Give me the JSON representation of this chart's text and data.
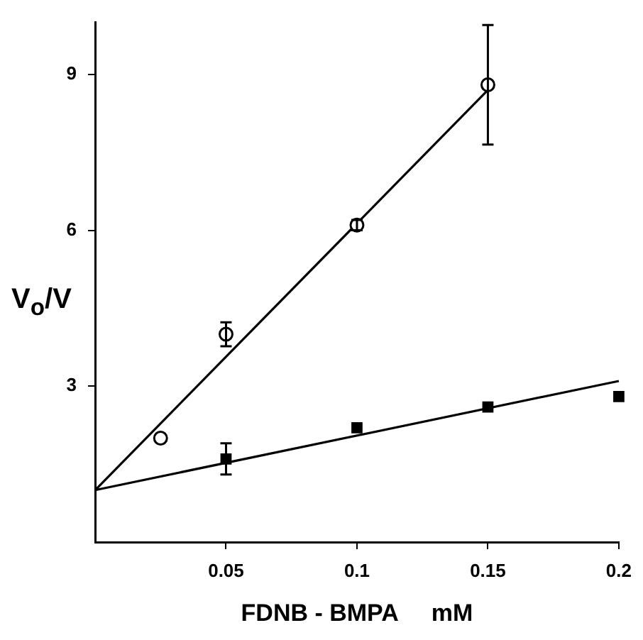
{
  "chart_data": {
    "type": "scatter",
    "xlabel": "FDNB - BMPA     mM",
    "ylabel": "V$_{o}$/V",
    "xlim": [
      0,
      0.2
    ],
    "xticks": [
      0.05,
      0.1,
      0.15,
      0.2
    ],
    "ylim": [
      0,
      10
    ],
    "yticks": [
      3,
      6,
      9
    ],
    "grid": false,
    "legend": false,
    "series": [
      {
        "marker": "circle",
        "color": "#000000",
        "x": [
          0.025,
          0.05,
          0.1,
          0.15
        ],
        "values": [
          2.0,
          4.0,
          6.1,
          8.8
        ],
        "errors": [
          null,
          0.23,
          0.1,
          1.15
        ]
      },
      {
        "marker": "square",
        "color": "#000000",
        "x": [
          0.05,
          0.1,
          0.15,
          0.2
        ],
        "values": [
          1.6,
          2.2,
          2.6,
          2.8
        ],
        "errors": [
          0.3,
          null,
          null,
          null
        ]
      },
      {
        "type": "line",
        "marker": "none",
        "color": "#000000",
        "x": [
          0,
          0.15
        ],
        "values": [
          1.0,
          8.7
        ]
      },
      {
        "type": "line",
        "marker": "none",
        "color": "#000000",
        "x": [
          0,
          0.2
        ],
        "values": [
          1.0,
          3.1
        ]
      }
    ]
  }
}
